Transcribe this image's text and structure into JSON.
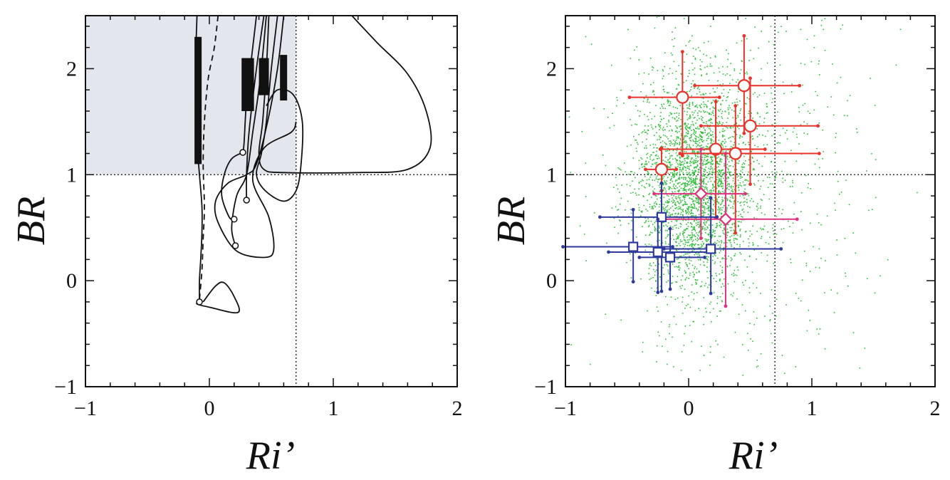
{
  "chart_data": [
    {
      "panel": "left",
      "type": "line",
      "xlabel": "Ri’",
      "ylabel": "BR",
      "xlim": [
        -1,
        2
      ],
      "ylim": [
        -1,
        2.5
      ],
      "xticks": [
        -1,
        0,
        1,
        2
      ],
      "yticks": [
        -1,
        0,
        1,
        2
      ],
      "reference_lines": {
        "x": 0.7,
        "y": 1
      },
      "shaded_region": {
        "x": [
          -1,
          0.7
        ],
        "y": [
          1,
          2.5
        ],
        "color": "#e3e6ec"
      },
      "series": [
        {
          "style": "solid",
          "values": [
            [
              -0.1,
              2.5
            ],
            [
              -0.11,
              2.1
            ],
            [
              -0.11,
              1.7
            ],
            [
              -0.1,
              1.3
            ],
            [
              -0.08,
              1.0
            ],
            [
              -0.06,
              0.7
            ],
            [
              -0.06,
              0.45
            ],
            [
              -0.07,
              0.2
            ],
            [
              -0.08,
              0.0
            ],
            [
              -0.08,
              -0.2
            ]
          ]
        },
        {
          "style": "solid",
          "values": [
            [
              -0.05,
              -0.2
            ],
            [
              0.05,
              -0.05
            ],
            [
              0.12,
              -0.02
            ],
            [
              0.2,
              -0.15
            ],
            [
              0.23,
              -0.3
            ],
            [
              0.0,
              -0.25
            ],
            [
              -0.1,
              -0.22
            ],
            [
              -0.08,
              -0.2
            ]
          ]
        },
        {
          "style": "dashed",
          "values": [
            [
              0.07,
              2.5
            ],
            [
              0.04,
              2.2
            ],
            [
              -0.01,
              1.9
            ],
            [
              -0.04,
              1.5
            ],
            [
              -0.05,
              1.1
            ],
            [
              -0.04,
              0.7
            ],
            [
              -0.05,
              0.4
            ],
            [
              -0.06,
              0.1
            ],
            [
              -0.08,
              -0.18
            ]
          ]
        },
        {
          "style": "solid",
          "values": [
            [
              0.38,
              2.5
            ],
            [
              0.34,
              2.1
            ],
            [
              0.3,
              1.7
            ],
            [
              0.28,
              1.3
            ],
            [
              0.27,
              1.21
            ]
          ]
        },
        {
          "style": "solid",
          "values": [
            [
              0.27,
              1.21
            ],
            [
              0.18,
              1.15
            ],
            [
              0.12,
              1.0
            ],
            [
              0.1,
              0.8
            ],
            [
              0.16,
              0.6
            ],
            [
              0.2,
              0.58
            ]
          ]
        },
        {
          "style": "solid",
          "values": [
            [
              0.44,
              2.5
            ],
            [
              0.38,
              2.0
            ],
            [
              0.32,
              1.4
            ],
            [
              0.3,
              1.0
            ],
            [
              0.3,
              0.76
            ]
          ]
        },
        {
          "style": "solid",
          "values": [
            [
              0.46,
              2.5
            ],
            [
              0.41,
              1.9
            ],
            [
              0.35,
              1.4
            ],
            [
              0.3,
              1.0
            ],
            [
              0.22,
              0.8
            ],
            [
              0.18,
              0.5
            ],
            [
              0.21,
              0.33
            ]
          ]
        },
        {
          "style": "solid",
          "values": [
            [
              0.6,
              2.5
            ],
            [
              0.55,
              2.0
            ],
            [
              0.47,
              1.5
            ],
            [
              0.38,
              1.1
            ],
            [
              0.3,
              1.0
            ],
            [
              0.15,
              0.92
            ],
            [
              0.05,
              0.75
            ],
            [
              0.07,
              0.55
            ],
            [
              0.22,
              0.28
            ],
            [
              0.45,
              0.22
            ],
            [
              0.52,
              0.3
            ],
            [
              0.48,
              0.6
            ],
            [
              0.35,
              0.95
            ],
            [
              0.44,
              1.25
            ],
            [
              0.66,
              1.4
            ],
            [
              0.7,
              1.5
            ]
          ]
        },
        {
          "style": "solid",
          "values": [
            [
              0.55,
              2.5
            ],
            [
              0.5,
              2.0
            ],
            [
              0.46,
              1.5
            ],
            [
              0.42,
              1.2
            ],
            [
              0.38,
              1.0
            ],
            [
              0.45,
              0.85
            ],
            [
              0.6,
              0.75
            ],
            [
              0.7,
              0.85
            ],
            [
              0.74,
              1.1
            ],
            [
              0.75,
              1.5
            ],
            [
              0.68,
              1.75
            ],
            [
              0.55,
              1.8
            ],
            [
              0.46,
              1.65
            ]
          ]
        },
        {
          "style": "solid",
          "values": [
            [
              0.48,
              2.5
            ],
            [
              0.46,
              2.0
            ],
            [
              0.43,
              1.5
            ],
            [
              0.4,
              1.2
            ],
            [
              0.44,
              1.05
            ],
            [
              0.6,
              1.02
            ],
            [
              1.2,
              1.02
            ],
            [
              1.6,
              1.05
            ],
            [
              1.78,
              1.25
            ],
            [
              1.75,
              1.6
            ],
            [
              1.6,
              1.95
            ],
            [
              1.35,
              2.25
            ],
            [
              1.15,
              2.5
            ]
          ]
        }
      ],
      "end_markers": [
        [
          -0.08,
          -0.2
        ],
        [
          0.27,
          1.21
        ],
        [
          0.2,
          0.58
        ],
        [
          0.3,
          0.76
        ],
        [
          0.21,
          0.33
        ]
      ],
      "thick_bars": [
        {
          "x": [
            -0.12,
            -0.1
          ],
          "y": [
            1.1,
            2.3
          ]
        },
        {
          "x": [
            0.26,
            0.36
          ],
          "y": [
            1.6,
            2.1
          ]
        },
        {
          "x": [
            0.4,
            0.48
          ],
          "y": [
            1.75,
            2.1
          ]
        },
        {
          "x": [
            0.57,
            0.62
          ],
          "y": [
            1.7,
            2.13
          ]
        }
      ]
    },
    {
      "panel": "right",
      "type": "scatter",
      "xlabel": "Ri’",
      "ylabel": "BR",
      "xlim": [
        -1,
        2
      ],
      "ylim": [
        -1,
        2.5
      ],
      "xticks": [
        -1,
        0,
        1,
        2
      ],
      "yticks": [
        -1,
        0,
        1,
        2
      ],
      "reference_lines": {
        "x": 0.7,
        "y": 1
      },
      "background_points": {
        "color": "#2fbf3a",
        "description_count": 3500,
        "center": [
          0.05,
          0.9
        ]
      },
      "series": [
        {
          "marker": "circle",
          "color": "#e8322a",
          "points": [
            {
              "x": -0.05,
              "y": 1.73,
              "xerr": [
                0.43,
                0.3
              ],
              "yerr": [
                0.55,
                0.43
              ]
            },
            {
              "x": 0.45,
              "y": 1.84,
              "xerr": [
                0.4,
                0.45
              ],
              "yerr": [
                0.45,
                0.47
              ]
            },
            {
              "x": 0.5,
              "y": 1.46,
              "xerr": [
                0.4,
                0.55
              ],
              "yerr": [
                0.55,
                0.45
              ]
            },
            {
              "x": 0.22,
              "y": 1.24,
              "xerr": [
                0.45,
                0.4
              ],
              "yerr": [
                0.65,
                0.45
              ]
            },
            {
              "x": 0.38,
              "y": 1.2,
              "xerr": [
                0.45,
                0.68
              ],
              "yerr": [
                0.75,
                0.45
              ]
            },
            {
              "x": -0.22,
              "y": 1.05,
              "xerr": [
                0.13,
                0.12
              ],
              "yerr": [
                0.2,
                0.2
              ]
            }
          ]
        },
        {
          "marker": "diamond",
          "color": "#e0307f",
          "points": [
            {
              "x": 0.1,
              "y": 0.82,
              "xerr": [
                0.38,
                0.36
              ],
              "yerr": [
                0.42,
                0.42
              ]
            },
            {
              "x": 0.3,
              "y": 0.58,
              "xerr": [
                0.5,
                0.58
              ],
              "yerr": [
                0.82,
                0.62
              ]
            }
          ]
        },
        {
          "marker": "square",
          "color": "#2f3a9e",
          "points": [
            {
              "x": -0.22,
              "y": 0.6,
              "xerr": [
                0.5,
                0.45
              ],
              "yerr": [
                0.7,
                0.32
              ]
            },
            {
              "x": -0.45,
              "y": 0.32,
              "xerr": [
                0.57,
                0.32
              ],
              "yerr": [
                0.33,
                0.35
              ]
            },
            {
              "x": -0.25,
              "y": 0.27,
              "xerr": [
                0.4,
                0.42
              ],
              "yerr": [
                0.38,
                0.31
              ]
            },
            {
              "x": -0.15,
              "y": 0.22,
              "xerr": [
                0.25,
                0.28
              ],
              "yerr": [
                0.3,
                0.27
              ]
            },
            {
              "x": 0.18,
              "y": 0.3,
              "xerr": [
                0.38,
                0.57
              ],
              "yerr": [
                0.42,
                0.48
              ]
            }
          ]
        }
      ]
    }
  ]
}
